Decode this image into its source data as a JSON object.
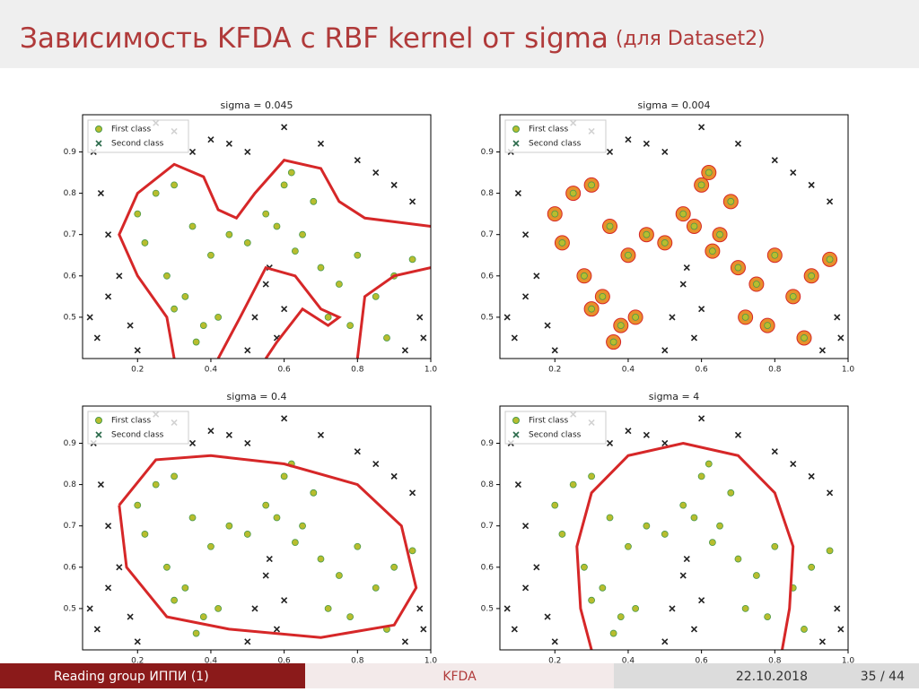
{
  "slide": {
    "title": "Зависимость KFDA с RBF kernel от sigma",
    "title_note": "(для Dataset2)",
    "footer": {
      "left": "Reading group ИППИ (1)",
      "center": "KFDA",
      "date": "22.10.2018",
      "page": "35 / 44"
    }
  },
  "chart_data": [
    {
      "type": "scatter",
      "title": "sigma = 0.045",
      "xlim": [
        0.05,
        1.0
      ],
      "ylim": [
        0.4,
        0.99
      ],
      "xticks": [
        0.2,
        0.4,
        0.6,
        0.8,
        {
          "value": 1,
          "label": "1.0"
        }
      ],
      "yticks": [
        0.5,
        0.6,
        0.7,
        0.8,
        0.9
      ],
      "legend": "upper left",
      "series": [
        {
          "name": "First class",
          "color": "#b8bd2e",
          "marker": "o",
          "x": [
            0.2,
            0.25,
            0.3,
            0.22,
            0.28,
            0.35,
            0.4,
            0.33,
            0.38,
            0.45,
            0.5,
            0.55,
            0.6,
            0.62,
            0.65,
            0.7,
            0.68,
            0.58,
            0.75,
            0.8,
            0.85,
            0.9,
            0.95,
            0.42,
            0.36,
            0.3,
            0.72,
            0.78,
            0.88,
            0.63
          ],
          "y": [
            0.75,
            0.8,
            0.82,
            0.68,
            0.6,
            0.72,
            0.65,
            0.55,
            0.48,
            0.7,
            0.68,
            0.75,
            0.82,
            0.85,
            0.7,
            0.62,
            0.78,
            0.72,
            0.58,
            0.65,
            0.55,
            0.6,
            0.64,
            0.5,
            0.44,
            0.52,
            0.5,
            0.48,
            0.45,
            0.66
          ]
        },
        {
          "name": "Second class",
          "color": "#222222",
          "marker": "x",
          "x": [
            0.08,
            0.1,
            0.12,
            0.15,
            0.07,
            0.09,
            0.2,
            0.3,
            0.4,
            0.5,
            0.6,
            0.7,
            0.8,
            0.9,
            0.95,
            0.52,
            0.55,
            0.58,
            0.5,
            0.6,
            0.56,
            0.97,
            0.93,
            0.98,
            0.45,
            0.25,
            0.35,
            0.85,
            0.12,
            0.18
          ],
          "y": [
            0.9,
            0.8,
            0.7,
            0.6,
            0.5,
            0.45,
            0.42,
            0.95,
            0.93,
            0.9,
            0.96,
            0.92,
            0.88,
            0.82,
            0.78,
            0.5,
            0.58,
            0.45,
            0.42,
            0.52,
            0.62,
            0.5,
            0.42,
            0.45,
            0.92,
            0.97,
            0.9,
            0.85,
            0.55,
            0.48
          ]
        },
        {
          "color": "#d62728",
          "marker": "line",
          "x": [
            0.3,
            0.28,
            0.2,
            0.15,
            0.2,
            0.3,
            0.38,
            0.42,
            0.47,
            0.52,
            0.6,
            0.7,
            0.75,
            0.82,
            1.0,
            null,
            0.42,
            0.48,
            0.55,
            0.63,
            0.7,
            0.75,
            0.72,
            0.65,
            0.58,
            0.55,
            null,
            0.8,
            0.82,
            0.9,
            1.0
          ],
          "y": [
            0.4,
            0.5,
            0.6,
            0.7,
            0.8,
            0.87,
            0.84,
            0.76,
            0.74,
            0.8,
            0.88,
            0.86,
            0.78,
            0.74,
            0.72,
            null,
            0.4,
            0.5,
            0.62,
            0.6,
            0.52,
            0.5,
            0.48,
            0.52,
            0.44,
            0.4,
            null,
            0.4,
            0.55,
            0.6,
            0.62
          ]
        }
      ]
    },
    {
      "type": "scatter",
      "title": "sigma = 0.004",
      "xlim": [
        0.05,
        1.0
      ],
      "ylim": [
        0.4,
        0.99
      ],
      "xticks": [
        0.2,
        0.4,
        0.6,
        0.8,
        {
          "value": 1,
          "label": "1.0"
        }
      ],
      "yticks": [
        0.5,
        0.6,
        0.7,
        0.8,
        0.9
      ],
      "legend": "upper left",
      "series": [
        {
          "color": "#e8902a",
          "marker": "blob",
          "x": [
            0.2,
            0.25,
            0.3,
            0.22,
            0.28,
            0.35,
            0.4,
            0.33,
            0.38,
            0.45,
            0.5,
            0.55,
            0.6,
            0.62,
            0.65,
            0.7,
            0.68,
            0.58,
            0.75,
            0.8,
            0.85,
            0.9,
            0.95,
            0.42,
            0.36,
            0.3,
            0.72,
            0.78,
            0.88,
            0.63
          ],
          "y": [
            0.75,
            0.8,
            0.82,
            0.68,
            0.6,
            0.72,
            0.65,
            0.55,
            0.48,
            0.7,
            0.68,
            0.75,
            0.82,
            0.85,
            0.7,
            0.62,
            0.78,
            0.72,
            0.58,
            0.65,
            0.55,
            0.6,
            0.64,
            0.5,
            0.44,
            0.52,
            0.5,
            0.48,
            0.45,
            0.66
          ]
        },
        {
          "name": "First class",
          "color": "#b8bd2e",
          "marker": "o",
          "x": [
            0.2,
            0.25,
            0.3,
            0.22,
            0.28,
            0.35,
            0.4,
            0.33,
            0.38,
            0.45,
            0.5,
            0.55,
            0.6,
            0.62,
            0.65,
            0.7,
            0.68,
            0.58,
            0.75,
            0.8,
            0.85,
            0.9,
            0.95,
            0.42,
            0.36,
            0.3,
            0.72,
            0.78,
            0.88,
            0.63
          ],
          "y": [
            0.75,
            0.8,
            0.82,
            0.68,
            0.6,
            0.72,
            0.65,
            0.55,
            0.48,
            0.7,
            0.68,
            0.75,
            0.82,
            0.85,
            0.7,
            0.62,
            0.78,
            0.72,
            0.58,
            0.65,
            0.55,
            0.6,
            0.64,
            0.5,
            0.44,
            0.52,
            0.5,
            0.48,
            0.45,
            0.66
          ]
        },
        {
          "name": "Second class",
          "color": "#222222",
          "marker": "x",
          "x": [
            0.08,
            0.1,
            0.12,
            0.15,
            0.07,
            0.09,
            0.2,
            0.3,
            0.4,
            0.5,
            0.6,
            0.7,
            0.8,
            0.9,
            0.95,
            0.52,
            0.55,
            0.58,
            0.5,
            0.6,
            0.56,
            0.97,
            0.93,
            0.98,
            0.45,
            0.25,
            0.35,
            0.85,
            0.12,
            0.18
          ],
          "y": [
            0.9,
            0.8,
            0.7,
            0.6,
            0.5,
            0.45,
            0.42,
            0.95,
            0.93,
            0.9,
            0.96,
            0.92,
            0.88,
            0.82,
            0.78,
            0.5,
            0.58,
            0.45,
            0.42,
            0.52,
            0.62,
            0.5,
            0.42,
            0.45,
            0.92,
            0.97,
            0.9,
            0.85,
            0.55,
            0.48
          ]
        }
      ]
    },
    {
      "type": "scatter",
      "title": "sigma = 0.4",
      "xlim": [
        0.05,
        1.0
      ],
      "ylim": [
        0.4,
        0.99
      ],
      "xticks": [
        0.2,
        0.4,
        0.6,
        0.8,
        {
          "value": 1,
          "label": "1.0"
        }
      ],
      "yticks": [
        0.5,
        0.6,
        0.7,
        0.8,
        0.9
      ],
      "legend": "upper left",
      "series": [
        {
          "name": "First class",
          "color": "#b8bd2e",
          "marker": "o",
          "x": [
            0.2,
            0.25,
            0.3,
            0.22,
            0.28,
            0.35,
            0.4,
            0.33,
            0.38,
            0.45,
            0.5,
            0.55,
            0.6,
            0.62,
            0.65,
            0.7,
            0.68,
            0.58,
            0.75,
            0.8,
            0.85,
            0.9,
            0.95,
            0.42,
            0.36,
            0.3,
            0.72,
            0.78,
            0.88,
            0.63
          ],
          "y": [
            0.75,
            0.8,
            0.82,
            0.68,
            0.6,
            0.72,
            0.65,
            0.55,
            0.48,
            0.7,
            0.68,
            0.75,
            0.82,
            0.85,
            0.7,
            0.62,
            0.78,
            0.72,
            0.58,
            0.65,
            0.55,
            0.6,
            0.64,
            0.5,
            0.44,
            0.52,
            0.5,
            0.48,
            0.45,
            0.66
          ]
        },
        {
          "name": "Second class",
          "color": "#222222",
          "marker": "x",
          "x": [
            0.08,
            0.1,
            0.12,
            0.15,
            0.07,
            0.09,
            0.2,
            0.3,
            0.4,
            0.5,
            0.6,
            0.7,
            0.8,
            0.9,
            0.95,
            0.52,
            0.55,
            0.58,
            0.5,
            0.6,
            0.56,
            0.97,
            0.93,
            0.98,
            0.45,
            0.25,
            0.35,
            0.85,
            0.12,
            0.18
          ],
          "y": [
            0.9,
            0.8,
            0.7,
            0.6,
            0.5,
            0.45,
            0.42,
            0.95,
            0.93,
            0.9,
            0.96,
            0.92,
            0.88,
            0.82,
            0.78,
            0.5,
            0.58,
            0.45,
            0.42,
            0.52,
            0.62,
            0.5,
            0.42,
            0.45,
            0.92,
            0.97,
            0.9,
            0.85,
            0.55,
            0.48
          ]
        },
        {
          "color": "#d62728",
          "marker": "line",
          "x": [
            0.15,
            0.25,
            0.4,
            0.6,
            0.8,
            0.92,
            0.96,
            0.9,
            0.7,
            0.45,
            0.28,
            0.17,
            0.15
          ],
          "y": [
            0.75,
            0.86,
            0.87,
            0.85,
            0.8,
            0.7,
            0.55,
            0.46,
            0.43,
            0.45,
            0.48,
            0.6,
            0.75
          ]
        }
      ]
    },
    {
      "type": "scatter",
      "title": "sigma = 4",
      "xlim": [
        0.05,
        1.0
      ],
      "ylim": [
        0.4,
        0.99
      ],
      "xticks": [
        0.2,
        0.4,
        0.6,
        0.8,
        {
          "value": 1,
          "label": "1.0"
        }
      ],
      "yticks": [
        0.5,
        0.6,
        0.7,
        0.8,
        0.9
      ],
      "legend": "upper left",
      "series": [
        {
          "name": "First class",
          "color": "#b8bd2e",
          "marker": "o",
          "x": [
            0.2,
            0.25,
            0.3,
            0.22,
            0.28,
            0.35,
            0.4,
            0.33,
            0.38,
            0.45,
            0.5,
            0.55,
            0.6,
            0.62,
            0.65,
            0.7,
            0.68,
            0.58,
            0.75,
            0.8,
            0.85,
            0.9,
            0.95,
            0.42,
            0.36,
            0.3,
            0.72,
            0.78,
            0.88,
            0.63
          ],
          "y": [
            0.75,
            0.8,
            0.82,
            0.68,
            0.6,
            0.72,
            0.65,
            0.55,
            0.48,
            0.7,
            0.68,
            0.75,
            0.82,
            0.85,
            0.7,
            0.62,
            0.78,
            0.72,
            0.58,
            0.65,
            0.55,
            0.6,
            0.64,
            0.5,
            0.44,
            0.52,
            0.5,
            0.48,
            0.45,
            0.66
          ]
        },
        {
          "name": "Second class",
          "color": "#222222",
          "marker": "x",
          "x": [
            0.08,
            0.1,
            0.12,
            0.15,
            0.07,
            0.09,
            0.2,
            0.3,
            0.4,
            0.5,
            0.6,
            0.7,
            0.8,
            0.9,
            0.95,
            0.52,
            0.55,
            0.58,
            0.5,
            0.6,
            0.56,
            0.97,
            0.93,
            0.98,
            0.45,
            0.25,
            0.35,
            0.85,
            0.12,
            0.18
          ],
          "y": [
            0.9,
            0.8,
            0.7,
            0.6,
            0.5,
            0.45,
            0.42,
            0.95,
            0.93,
            0.9,
            0.96,
            0.92,
            0.88,
            0.82,
            0.78,
            0.5,
            0.58,
            0.45,
            0.42,
            0.52,
            0.62,
            0.5,
            0.42,
            0.45,
            0.92,
            0.97,
            0.9,
            0.85,
            0.55,
            0.48
          ]
        },
        {
          "color": "#d62728",
          "marker": "line",
          "x": [
            0.3,
            0.27,
            0.26,
            0.3,
            0.4,
            0.55,
            0.7,
            0.8,
            0.85,
            0.84,
            0.82
          ],
          "y": [
            0.4,
            0.5,
            0.65,
            0.78,
            0.87,
            0.9,
            0.87,
            0.78,
            0.65,
            0.5,
            0.4
          ]
        }
      ]
    }
  ]
}
